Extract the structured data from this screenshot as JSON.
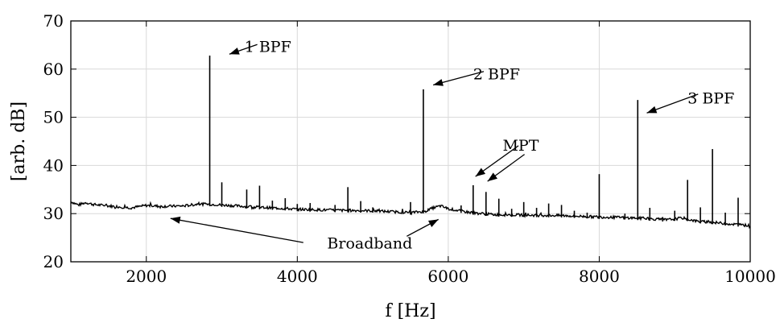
{
  "chart_data": {
    "type": "line",
    "title": "",
    "xlabel": "f [Hz]",
    "ylabel": "[arb. dB]",
    "xlim": [
      1000,
      10000
    ],
    "ylim": [
      20,
      70
    ],
    "grid": true,
    "x_ticks": [
      2000,
      4000,
      6000,
      8000,
      10000
    ],
    "y_ticks": [
      20,
      30,
      40,
      50,
      60,
      70
    ],
    "x_tick_labels": [
      "2000",
      "4000",
      "6000",
      "8000",
      "10000"
    ],
    "y_tick_labels": [
      "20",
      "30",
      "40",
      "50",
      "60",
      "70"
    ],
    "line_color": "#000000",
    "series": [
      {
        "baseline": {
          "x": [
            1000,
            1100,
            1200,
            1300,
            1500,
            1800,
            2000,
            2200,
            2500,
            2700,
            2900,
            3200,
            3500,
            3800,
            4000,
            4500,
            5000,
            5500,
            5700,
            5800,
            5900,
            6000,
            6300,
            6600,
            7000,
            7500,
            8000,
            8300,
            8600,
            8900,
            9100,
            9300,
            9500,
            9700,
            10000
          ],
          "y": [
            32.5,
            31.8,
            32.3,
            31.9,
            31.6,
            31.2,
            31.7,
            31.5,
            31.6,
            32.0,
            31.9,
            31.6,
            31.3,
            31.1,
            30.9,
            30.7,
            30.6,
            30.2,
            30.5,
            31.2,
            31.6,
            31.0,
            30.2,
            29.8,
            29.7,
            29.6,
            29.3,
            29.2,
            29.0,
            28.7,
            29.1,
            28.4,
            28.2,
            27.9,
            27.5
          ]
        },
        "peaks": [
          {
            "x": 2840,
            "y": 62.8
          },
          {
            "x": 5670,
            "y": 55.8
          },
          {
            "x": 8510,
            "y": 53.6
          },
          {
            "x": 3000,
            "y": 36.5
          },
          {
            "x": 3330,
            "y": 35.0
          },
          {
            "x": 3500,
            "y": 35.8
          },
          {
            "x": 3670,
            "y": 32.7
          },
          {
            "x": 3840,
            "y": 33.2
          },
          {
            "x": 4000,
            "y": 32.0
          },
          {
            "x": 4170,
            "y": 32.2
          },
          {
            "x": 4500,
            "y": 31.8
          },
          {
            "x": 4670,
            "y": 35.5
          },
          {
            "x": 4840,
            "y": 32.6
          },
          {
            "x": 5000,
            "y": 31.3
          },
          {
            "x": 5500,
            "y": 32.4
          },
          {
            "x": 6170,
            "y": 31.7
          },
          {
            "x": 6330,
            "y": 35.9
          },
          {
            "x": 6500,
            "y": 34.5
          },
          {
            "x": 6670,
            "y": 33.1
          },
          {
            "x": 6840,
            "y": 31.0
          },
          {
            "x": 7000,
            "y": 32.4
          },
          {
            "x": 7170,
            "y": 31.2
          },
          {
            "x": 7330,
            "y": 32.1
          },
          {
            "x": 7500,
            "y": 31.8
          },
          {
            "x": 7670,
            "y": 30.6
          },
          {
            "x": 7840,
            "y": 30.2
          },
          {
            "x": 8000,
            "y": 38.2
          },
          {
            "x": 8340,
            "y": 30.0
          },
          {
            "x": 8670,
            "y": 31.2
          },
          {
            "x": 8840,
            "y": 29.3
          },
          {
            "x": 9000,
            "y": 30.6
          },
          {
            "x": 9170,
            "y": 37.0
          },
          {
            "x": 9340,
            "y": 31.3
          },
          {
            "x": 9500,
            "y": 43.4
          },
          {
            "x": 9670,
            "y": 30.2
          },
          {
            "x": 9840,
            "y": 33.3
          }
        ]
      }
    ],
    "annotations": [
      {
        "text": "1 BPF",
        "text_x": 3610,
        "text_y": 63.6,
        "arrows": [
          {
            "from_x": 3470,
            "from_y": 65.1,
            "to_x": 3100,
            "to_y": 63.1
          }
        ]
      },
      {
        "text": "2 BPF",
        "text_x": 6640,
        "text_y": 57.9,
        "arrows": [
          {
            "from_x": 6470,
            "from_y": 59.5,
            "to_x": 5800,
            "to_y": 56.7
          }
        ]
      },
      {
        "text": "3 BPF",
        "text_x": 9480,
        "text_y": 52.9,
        "arrows": [
          {
            "from_x": 9310,
            "from_y": 54.8,
            "to_x": 8630,
            "to_y": 50.9
          }
        ]
      },
      {
        "text": "MPT",
        "text_x": 6960,
        "text_y": 43.1,
        "arrows": [
          {
            "from_x": 6930,
            "from_y": 44.1,
            "to_x": 6360,
            "to_y": 37.7
          },
          {
            "from_x": 7010,
            "from_y": 42.3,
            "to_x": 6520,
            "to_y": 36.7
          }
        ]
      },
      {
        "text": "Broadband",
        "text_x": 4960,
        "text_y": 22.8,
        "arrows": [
          {
            "from_x": 4080,
            "from_y": 24.0,
            "to_x": 2320,
            "to_y": 29.0
          },
          {
            "from_x": 5450,
            "from_y": 25.3,
            "to_x": 5870,
            "to_y": 28.8
          }
        ]
      }
    ]
  }
}
